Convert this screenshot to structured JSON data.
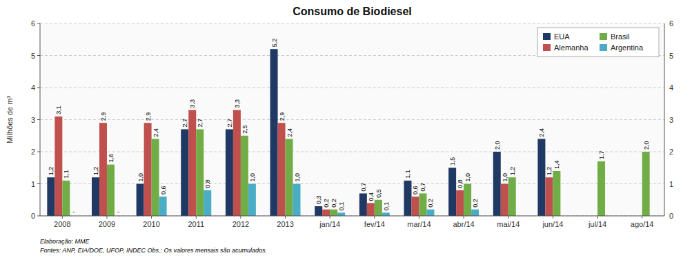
{
  "chart_data": {
    "type": "bar",
    "title": "Consumo de Biodiesel",
    "y_label": "Milhões de m³",
    "categories": [
      "2008",
      "2009",
      "2010",
      "2011",
      "2012",
      "2013",
      "jan/14",
      "fev/14",
      "mar/14",
      "abr/14",
      "mai/14",
      "jun/14",
      "jul/14",
      "ago/14"
    ],
    "series": [
      {
        "name": "EUA",
        "color": "#1F3864",
        "values": [
          1.2,
          1.2,
          1.0,
          2.7,
          2.7,
          5.2,
          0.3,
          0.7,
          1.1,
          1.5,
          2.0,
          2.4,
          null,
          null
        ],
        "value_labels": [
          "1,2",
          "1,2",
          "1,0",
          "2,7",
          "2,7",
          "5,2",
          "0,3",
          "0,7",
          "1,1",
          "1,5",
          "2,0",
          "2,4",
          null,
          null
        ]
      },
      {
        "name": "Alemanha",
        "color": "#C0504D",
        "values": [
          3.1,
          2.9,
          2.9,
          3.3,
          3.3,
          2.9,
          0.2,
          0.4,
          0.6,
          0.8,
          1.0,
          1.2,
          null,
          null
        ],
        "value_labels": [
          "3,1",
          "2,9",
          "2,9",
          "3,3",
          "3,3",
          "2,9",
          "0,2",
          "0,4",
          "0,6",
          "0,8",
          "1,0",
          "1,2",
          null,
          null
        ]
      },
      {
        "name": "Brasil",
        "color": "#70AD47",
        "values": [
          1.1,
          1.6,
          2.4,
          2.7,
          2.5,
          2.4,
          0.2,
          0.5,
          0.7,
          1.0,
          1.2,
          1.4,
          1.7,
          2.0
        ],
        "value_labels": [
          "1,1",
          "1,6",
          "2,4",
          "2,7",
          "2,5",
          "2,4",
          "0,2",
          "0,5",
          "0,7",
          "1,0",
          "1,2",
          "1,4",
          "1,7",
          "2,0"
        ]
      },
      {
        "name": "Argentina",
        "color": "#4BACC6",
        "values": [
          null,
          null,
          0.6,
          0.8,
          1.0,
          1.0,
          0.1,
          0.1,
          0.2,
          0.2,
          null,
          null,
          null,
          null
        ],
        "value_labels": [
          null,
          null,
          "0,6",
          "0,8",
          "1,0",
          "1,0",
          "0,1",
          "0,1",
          "0,2",
          "0,2",
          null,
          null,
          null,
          null
        ]
      }
    ],
    "annotations": [
      {
        "text": "-",
        "category": "2008",
        "series": "Argentina"
      },
      {
        "text": "-",
        "category": "2009",
        "series": "Argentina"
      }
    ],
    "footnotes": [
      "Elaboração: MME",
      "Fontes: ANP, EIA/DOE, UFOP, INDEC      Obs.: Os valores mensais são acumulados."
    ],
    "ylim": [
      0,
      6
    ],
    "yticks": [
      0,
      1,
      2,
      3,
      4,
      5,
      6
    ],
    "y2lim": [
      0,
      6
    ],
    "y2ticks": [
      0,
      1,
      2,
      3,
      4,
      5,
      6
    ],
    "grid": true,
    "legend": "upper right",
    "data_labels": true
  }
}
